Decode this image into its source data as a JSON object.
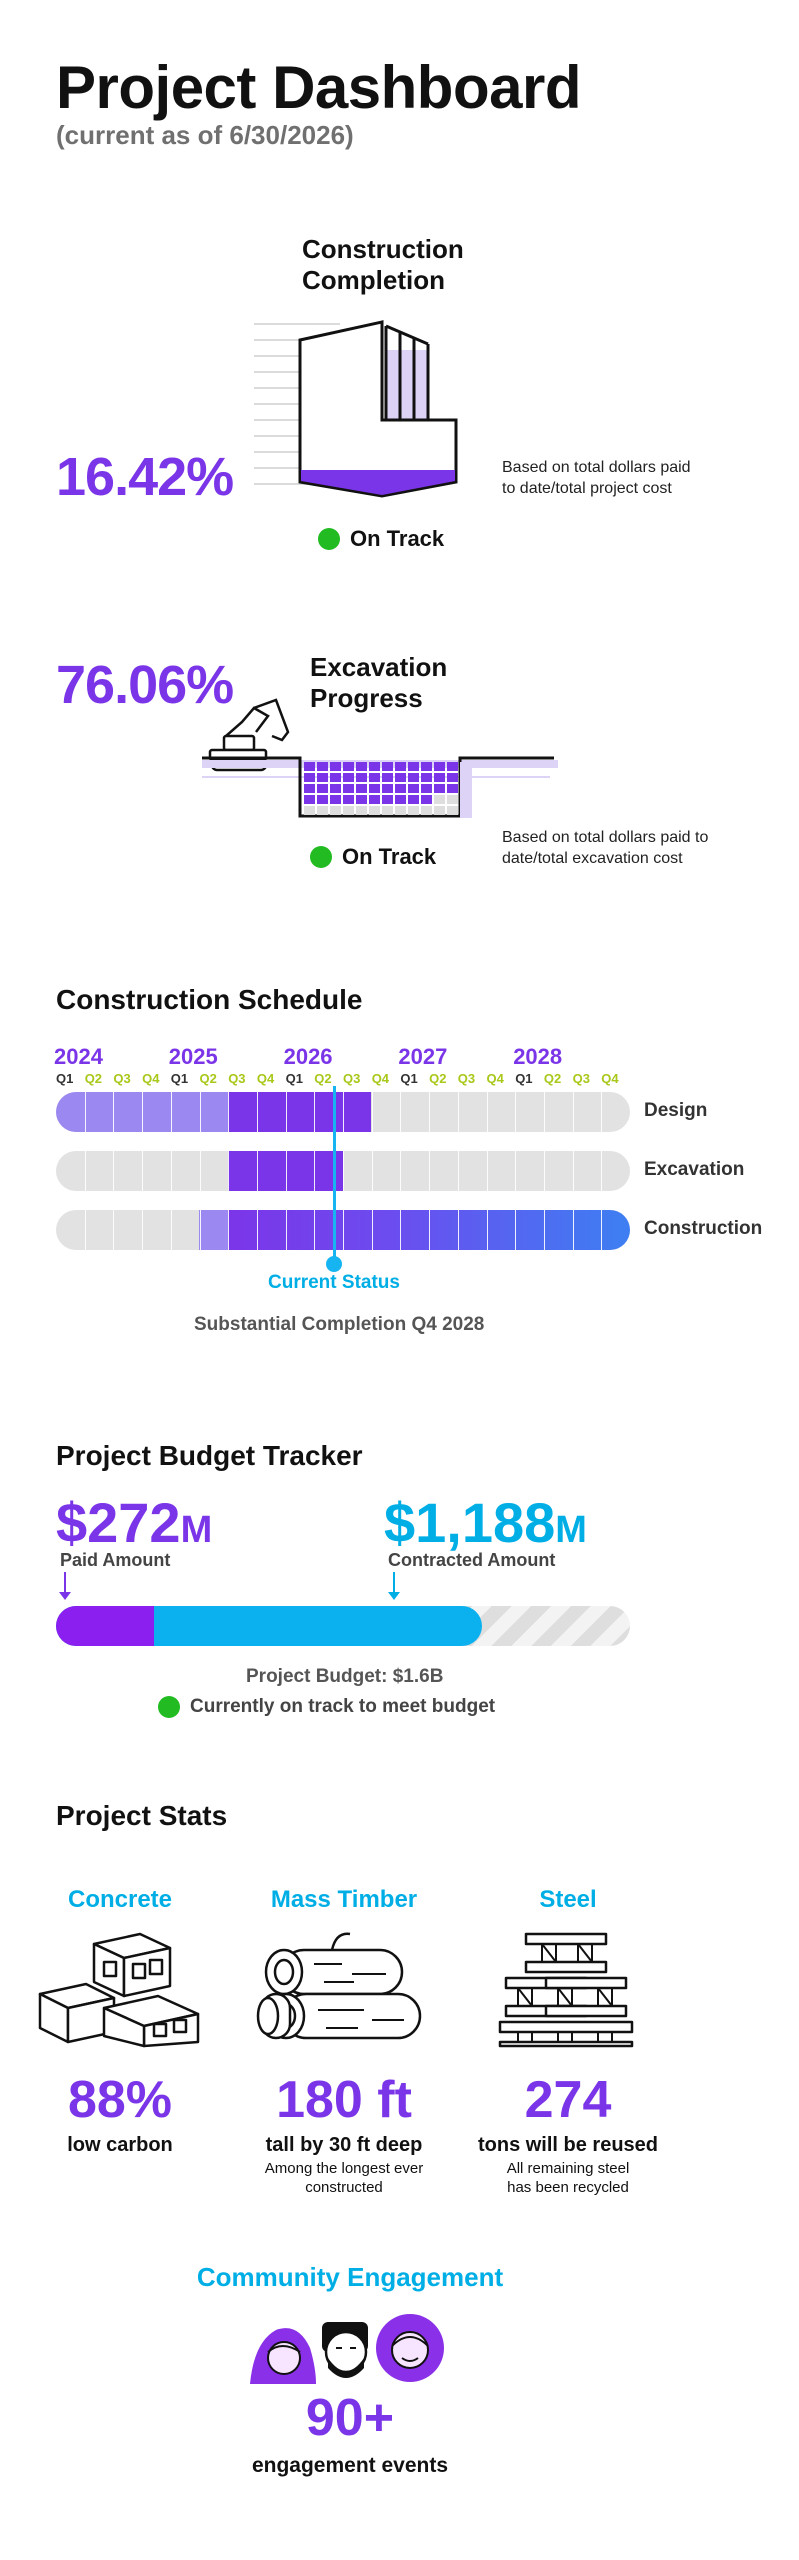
{
  "header": {
    "title": "Project Dashboard",
    "subtitle": "(current as of 6/30/2026)"
  },
  "construction": {
    "heading_line1": "Construction",
    "heading_line2": "Completion",
    "percent": "16.42%",
    "progress_fraction": 0.1642,
    "note_line1": "Based on total dollars paid",
    "note_line2": "to date/total project cost",
    "status": "On Track"
  },
  "excavation": {
    "heading_line1": "Excavation",
    "heading_line2": "Progress",
    "percent": "76.06%",
    "progress_fraction": 0.7606,
    "note_line1": "Based on total dollars paid to",
    "note_line2": "date/total excavation cost",
    "status": "On Track"
  },
  "schedule": {
    "title": "Construction Schedule",
    "years": [
      "2024",
      "2025",
      "2026",
      "2027",
      "2028"
    ],
    "quarters": [
      "Q1",
      "Q2",
      "Q3",
      "Q4"
    ],
    "rows": [
      {
        "label": "Design"
      },
      {
        "label": "Excavation"
      },
      {
        "label": "Construction"
      }
    ],
    "current_status": "Current Status",
    "completion": "Substantial Completion Q4 2028"
  },
  "budget": {
    "title": "Project Budget Tracker",
    "paid_value": "$272",
    "paid_unit": "M",
    "paid_label": "Paid Amount",
    "contracted_value": "$1,188",
    "contracted_unit": "M",
    "contracted_label": "Contracted Amount",
    "total": "Project Budget: $1.6B",
    "status": "Currently on track to meet budget",
    "paid_amount_m": 272,
    "contracted_amount_m": 1188,
    "budget_amount_m": 1600
  },
  "stats": {
    "title": "Project Stats",
    "items": [
      {
        "heading": "Concrete",
        "icon": "concrete-blocks-icon",
        "value": "88%",
        "label": "low carbon",
        "sub1": "",
        "sub2": ""
      },
      {
        "heading": "Mass Timber",
        "icon": "timber-logs-icon",
        "value": "180 ft",
        "label": "tall by 30 ft deep",
        "sub1": "Among the longest ever",
        "sub2": "constructed"
      },
      {
        "heading": "Steel",
        "icon": "steel-beams-icon",
        "value": "274",
        "label": "tons will be reused",
        "sub1": "All remaining steel",
        "sub2": "has been recycled"
      }
    ]
  },
  "community": {
    "title": "Community Engagement",
    "value": "90+",
    "label": "engagement events",
    "icon": "people-avatars-icon"
  },
  "colors": {
    "purple": "#7b35e8",
    "cyan": "#00aee6",
    "green": "#22bb22",
    "lime": "#a8c81a"
  }
}
